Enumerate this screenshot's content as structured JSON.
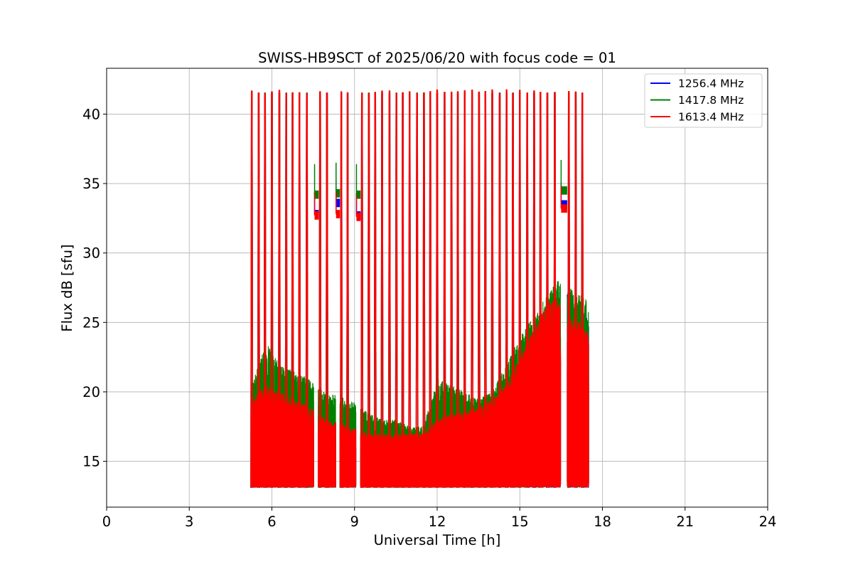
{
  "chart_data": {
    "type": "line",
    "title": "SWISS-HB9SCT of 2025/06/20 with focus code = 01",
    "xlabel": "Universal Time [h]",
    "ylabel": "Flux dB [sfu]",
    "xlim": [
      0,
      24
    ],
    "ylim": [
      11.7,
      43.3
    ],
    "xticks": [
      0,
      3,
      6,
      9,
      12,
      15,
      18,
      21,
      24
    ],
    "yticks": [
      15,
      20,
      25,
      30,
      35,
      40
    ],
    "grid": true,
    "legend_position": "upper right",
    "data_start_h": 5.25,
    "data_end_h": 17.5,
    "baseline_db": 13.1,
    "calibration_peak_times_h": [
      5.27,
      5.52,
      5.75,
      6.0,
      6.27,
      6.52,
      6.75,
      7.0,
      7.27,
      7.75,
      8.0,
      8.52,
      8.75,
      9.27,
      9.52,
      9.75,
      10.0,
      10.27,
      10.52,
      10.75,
      11.0,
      11.27,
      11.52,
      11.75,
      12.0,
      12.27,
      12.52,
      12.75,
      13.0,
      13.27,
      13.52,
      13.75,
      14.0,
      14.27,
      14.52,
      14.75,
      15.0,
      15.27,
      15.52,
      15.75,
      16.0,
      16.27,
      16.78,
      17.03,
      17.27
    ],
    "calibration_peak_db": 41.6,
    "gaps_h": [
      [
        7.52,
        7.68
      ],
      [
        8.32,
        8.47
      ],
      [
        9.05,
        9.22
      ],
      [
        16.48,
        16.72
      ]
    ],
    "plateau_segments": [
      {
        "x": [
          7.55,
          7.7
        ],
        "y_1256": 32.8,
        "y_1418": 34.2,
        "y_1613": 32.7
      },
      {
        "x": [
          8.33,
          8.47
        ],
        "y_1256": 33.6,
        "y_1418": 34.3,
        "y_1613": 32.8
      },
      {
        "x": [
          9.07,
          9.22
        ],
        "y_1256": 32.7,
        "y_1418": 34.2,
        "y_1613": 32.6
      },
      {
        "x": [
          16.5,
          16.72
        ],
        "y_1256": 33.5,
        "y_1418": 34.5,
        "y_1613": 33.2
      }
    ],
    "series": [
      {
        "name": "1256.4 MHz",
        "color": "#0000ff",
        "envelope_x": [
          5.3,
          6.0,
          7.0,
          8.0,
          9.0,
          10.0,
          11.0,
          12.0,
          13.0,
          14.0,
          14.5,
          15.0,
          15.5,
          16.0,
          16.4,
          16.8,
          17.2,
          17.5
        ],
        "envelope_upper": [
          20.0,
          19.5,
          18.0,
          17.0,
          16.5,
          16.5,
          16.0,
          17.0,
          17.5,
          18.5,
          19.5,
          21.0,
          23.0,
          25.0,
          26.5,
          27.2,
          26.0,
          25.5
        ]
      },
      {
        "name": "1417.8 MHz",
        "color": "#008000",
        "envelope_x": [
          5.3,
          5.8,
          6.3,
          6.8,
          7.3,
          8.0,
          8.8,
          9.5,
          10.0,
          10.5,
          11.0,
          11.5,
          12.0,
          12.5,
          13.0,
          13.5,
          14.0,
          14.5,
          15.0,
          15.5,
          16.0,
          16.4,
          16.8,
          17.2,
          17.5
        ],
        "envelope_upper": [
          20.8,
          23.5,
          22.0,
          21.5,
          21.0,
          20.0,
          19.5,
          18.5,
          18.0,
          18.0,
          17.5,
          17.5,
          21.0,
          20.5,
          20.0,
          19.5,
          20.0,
          22.0,
          24.0,
          25.5,
          27.0,
          28.2,
          27.5,
          27.0,
          26.5
        ]
      },
      {
        "name": "1613.4 MHz",
        "color": "#ff0000",
        "envelope_x": [
          5.3,
          5.8,
          6.3,
          6.8,
          7.3,
          8.0,
          8.8,
          9.5,
          10.0,
          10.5,
          11.0,
          11.5,
          12.0,
          12.5,
          13.0,
          13.5,
          14.0,
          14.5,
          15.0,
          15.5,
          16.0,
          16.4,
          16.8,
          17.2,
          17.5
        ],
        "envelope_upper": [
          19.5,
          20.5,
          20.0,
          19.5,
          19.0,
          18.0,
          17.5,
          17.0,
          17.0,
          17.0,
          17.0,
          17.0,
          18.0,
          18.5,
          18.5,
          19.0,
          19.5,
          20.5,
          22.5,
          24.5,
          26.5,
          26.8,
          25.5,
          25.0,
          24.5
        ]
      }
    ]
  }
}
